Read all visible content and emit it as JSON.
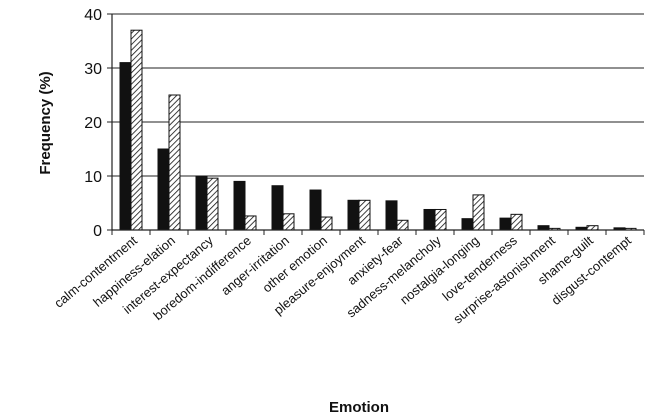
{
  "chart_data": {
    "type": "bar",
    "title": "",
    "xlabel": "Emotion",
    "ylabel": "Frequency (%)",
    "ylim": [
      0,
      40
    ],
    "yticks": [
      0,
      10,
      20,
      30,
      40
    ],
    "grid": true,
    "categories": [
      "calm-contentment",
      "happiness-elation",
      "interest-expectancy",
      "boredom-indifference",
      "anger-irritation",
      "other emotion",
      "pleasure-enjoyment",
      "anxiety-fear",
      "sadness-melancholy",
      "nostalgia-longing",
      "love-tenderness",
      "surprise-astonishment",
      "shame-guilt",
      "disgust-contempt"
    ],
    "series": [
      {
        "color": "#111111",
        "pattern": "solid",
        "values": [
          31,
          15,
          10,
          9,
          8.2,
          7.4,
          5.5,
          5.4,
          3.8,
          2.1,
          2.2,
          0.8,
          0.5,
          0.4
        ]
      },
      {
        "color": "#ffffff",
        "pattern": "hatched",
        "values": [
          37,
          25,
          9.6,
          2.6,
          3.0,
          2.4,
          5.5,
          1.8,
          3.8,
          6.5,
          2.9,
          0.3,
          0.8,
          0.3
        ]
      }
    ]
  }
}
